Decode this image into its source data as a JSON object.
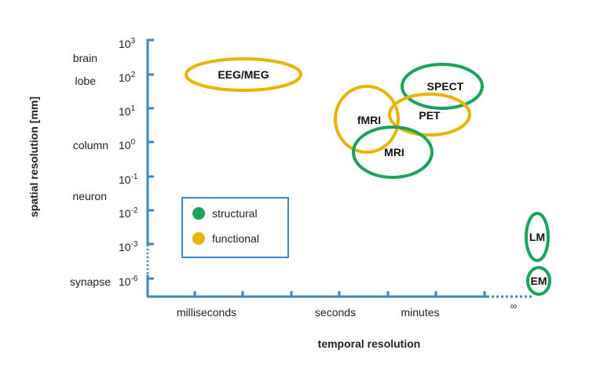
{
  "colors": {
    "axis": "#3a87c8",
    "structural": "#19a35b",
    "functional": "#e8b400"
  },
  "y_axis": {
    "title": "spatial resolution [mm]",
    "ticks": [
      {
        "base": "10",
        "exp": "3",
        "category": ""
      },
      {
        "base": "10",
        "exp": "2",
        "category": "lobe"
      },
      {
        "base": "10",
        "exp": "1",
        "category": ""
      },
      {
        "base": "10",
        "exp": "0",
        "category": "column"
      },
      {
        "base": "10",
        "exp": "-1",
        "category": ""
      },
      {
        "base": "10",
        "exp": "-2",
        "category": ""
      },
      {
        "base": "10",
        "exp": "-3",
        "category": ""
      },
      {
        "base": "10",
        "exp": "-6",
        "category": "synapse"
      }
    ],
    "extra_labels": {
      "brain": "brain",
      "neuron": "neuron"
    }
  },
  "x_axis": {
    "title": "temporal resolution",
    "labels": {
      "milliseconds": "milliseconds",
      "seconds": "seconds",
      "minutes": "minutes",
      "infinity": "∞"
    }
  },
  "legend": {
    "structural": "structural",
    "functional": "functional"
  },
  "methods": [
    {
      "name": "EEG/MEG",
      "type": "functional"
    },
    {
      "name": "fMRI",
      "type": "functional"
    },
    {
      "name": "PET",
      "type": "functional"
    },
    {
      "name": "SPECT",
      "type": "structural"
    },
    {
      "name": "MRI",
      "type": "structural"
    },
    {
      "name": "LM",
      "type": "structural"
    },
    {
      "name": "EM",
      "type": "structural"
    }
  ]
}
